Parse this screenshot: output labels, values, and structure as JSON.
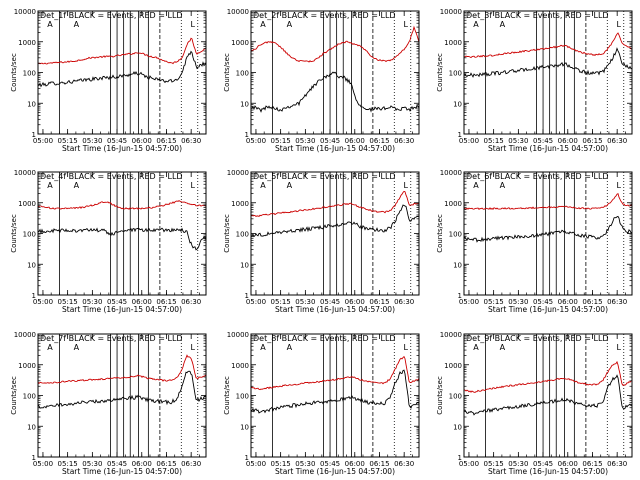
{
  "colors": {
    "events": "#000000",
    "lld": "#cc0000",
    "axis": "#000000",
    "bg": "#ffffff"
  },
  "common": {
    "ylabel": "Counts/sec",
    "xlabel": "Start Time (16-Jun-15 04:57:00)",
    "xticks": [
      "05:00",
      "05:15",
      "05:30",
      "05:45",
      "06:00",
      "06:15",
      "06:30"
    ],
    "yticks": [
      "1",
      "10",
      "100",
      "1000",
      "10000"
    ]
  },
  "chart_data": [
    {
      "type": "line",
      "title": "Det_1f BLACK = Events, RED = LLD",
      "xlabel": "Start Time (16-Jun-15 04:57:00)",
      "ylabel": "Counts/sec",
      "ylim": [
        1,
        10000
      ],
      "xlim": [
        "04:57",
        "06:39"
      ],
      "scale": "log",
      "attenuator_markers": [
        "A",
        "A",
        "L"
      ],
      "series": [
        {
          "name": "LLD",
          "color": "red",
          "values": [
            190,
            195,
            200,
            205,
            210,
            215,
            220,
            230,
            240,
            260,
            280,
            300,
            310,
            320,
            330,
            330,
            340,
            360,
            380,
            400,
            420,
            450,
            400,
            350,
            320,
            300,
            250,
            220,
            200,
            230,
            300,
            800,
            1300,
            400,
            500,
            600
          ]
        },
        {
          "name": "Events",
          "color": "black",
          "values": [
            40,
            40,
            42,
            45,
            45,
            46,
            48,
            50,
            52,
            55,
            58,
            60,
            62,
            65,
            68,
            70,
            72,
            75,
            80,
            85,
            90,
            95,
            80,
            70,
            62,
            58,
            54,
            52,
            52,
            60,
            100,
            300,
            500,
            150,
            180,
            200
          ]
        }
      ]
    },
    {
      "type": "line",
      "title": "Det_2f BLACK = Events, RED = LLD",
      "xlabel": "Start Time (16-Jun-15 04:57:00)",
      "ylabel": "Counts/sec",
      "ylim": [
        1,
        10000
      ],
      "xlim": [
        "04:57",
        "06:39"
      ],
      "scale": "log",
      "attenuator_markers": [
        "A",
        "A",
        "L"
      ],
      "series": [
        {
          "name": "LLD",
          "color": "red",
          "values": [
            500,
            600,
            800,
            950,
            1000,
            900,
            700,
            500,
            350,
            270,
            240,
            230,
            230,
            240,
            300,
            400,
            500,
            650,
            800,
            900,
            1000,
            900,
            800,
            700,
            500,
            350,
            270,
            250,
            240,
            250,
            300,
            400,
            600,
            1000,
            3000,
            1000
          ]
        },
        {
          "name": "Events",
          "color": "black",
          "values": [
            8,
            7,
            6,
            7,
            8,
            7,
            6,
            7,
            8,
            9,
            10,
            15,
            25,
            35,
            50,
            70,
            80,
            100,
            80,
            70,
            60,
            40,
            12,
            8,
            7,
            6,
            7,
            6,
            7,
            8,
            7,
            6,
            7,
            6,
            8,
            7
          ]
        }
      ]
    },
    {
      "type": "line",
      "title": "Det_3f BLACK = Events, RED = LLD",
      "xlabel": "Start Time (16-Jun-15 04:57:00)",
      "ylabel": "Counts/sec",
      "ylim": [
        1,
        10000
      ],
      "xlim": [
        "04:57",
        "06:39"
      ],
      "scale": "log",
      "attenuator_markers": [
        "A",
        "A",
        "L"
      ],
      "series": [
        {
          "name": "LLD",
          "color": "red",
          "values": [
            330,
            320,
            320,
            330,
            340,
            350,
            360,
            380,
            400,
            420,
            440,
            460,
            480,
            500,
            520,
            550,
            570,
            600,
            640,
            680,
            720,
            760,
            650,
            550,
            480,
            430,
            400,
            380,
            380,
            420,
            600,
            1000,
            2000,
            900,
            700,
            600
          ]
        },
        {
          "name": "Events",
          "color": "black",
          "values": [
            85,
            82,
            82,
            85,
            88,
            90,
            92,
            96,
            100,
            105,
            110,
            115,
            120,
            125,
            130,
            138,
            145,
            152,
            160,
            170,
            180,
            190,
            160,
            135,
            118,
            105,
            98,
            92,
            92,
            105,
            160,
            300,
            600,
            200,
            150,
            130
          ]
        }
      ]
    },
    {
      "type": "line",
      "title": "Det_4f BLACK = Events, RED = LLD",
      "xlabel": "Start Time (16-Jun-15 04:57:00)",
      "ylabel": "Counts/sec",
      "ylim": [
        1,
        10000
      ],
      "xlim": [
        "04:57",
        "06:39"
      ],
      "scale": "log",
      "attenuator_markers": [
        "A",
        "A",
        "L"
      ],
      "series": [
        {
          "name": "LLD",
          "color": "red",
          "values": [
            800,
            750,
            700,
            650,
            650,
            650,
            650,
            660,
            680,
            700,
            750,
            800,
            900,
            1000,
            1100,
            1000,
            800,
            700,
            650,
            650,
            650,
            650,
            660,
            680,
            700,
            750,
            800,
            900,
            1000,
            1100,
            1100,
            1000,
            900,
            800,
            800,
            800
          ]
        },
        {
          "name": "Events",
          "color": "black",
          "values": [
            115,
            118,
            120,
            122,
            124,
            125,
            125,
            126,
            126,
            127,
            127,
            128,
            128,
            126,
            120,
            95,
            100,
            120,
            125,
            126,
            127,
            128,
            128,
            129,
            129,
            130,
            130,
            131,
            131,
            130,
            125,
            110,
            40,
            30,
            60,
            80
          ]
        }
      ]
    },
    {
      "type": "line",
      "title": "Det_5f BLACK = Events, RED = LLD",
      "xlabel": "Start Time (16-Jun-15 04:57:00)",
      "ylabel": "Counts/sec",
      "ylim": [
        1,
        10000
      ],
      "xlim": [
        "04:57",
        "06:39"
      ],
      "scale": "log",
      "attenuator_markers": [
        "A",
        "A",
        "L"
      ],
      "series": [
        {
          "name": "LLD",
          "color": "red",
          "values": [
            380,
            370,
            380,
            400,
            420,
            440,
            460,
            480,
            500,
            520,
            550,
            580,
            600,
            630,
            660,
            700,
            740,
            780,
            820,
            860,
            900,
            950,
            800,
            700,
            620,
            560,
            520,
            500,
            500,
            560,
            800,
            1500,
            2500,
            800,
            900,
            1000
          ]
        },
        {
          "name": "Events",
          "color": "black",
          "values": [
            90,
            88,
            90,
            95,
            100,
            105,
            110,
            115,
            120,
            125,
            130,
            135,
            140,
            145,
            150,
            160,
            170,
            180,
            190,
            200,
            210,
            220,
            190,
            165,
            150,
            140,
            132,
            128,
            128,
            150,
            250,
            500,
            1000,
            250,
            300,
            350
          ]
        }
      ]
    },
    {
      "type": "line",
      "title": "Det_6f BLACK = Events, RED = LLD",
      "xlabel": "Start Time (16-Jun-15 04:57:00)",
      "ylabel": "Counts/sec",
      "ylim": [
        1,
        10000
      ],
      "xlim": [
        "04:57",
        "06:39"
      ],
      "scale": "log",
      "attenuator_markers": [
        "A",
        "A",
        "L"
      ],
      "series": [
        {
          "name": "LLD",
          "color": "red",
          "values": [
            650,
            640,
            640,
            640,
            640,
            645,
            650,
            650,
            655,
            660,
            660,
            665,
            670,
            675,
            680,
            690,
            700,
            710,
            720,
            730,
            740,
            760,
            720,
            690,
            670,
            660,
            650,
            650,
            650,
            700,
            900,
            1200,
            2000,
            900,
            800,
            800
          ]
        },
        {
          "name": "Events",
          "color": "black",
          "values": [
            70,
            65,
            62,
            62,
            64,
            66,
            68,
            70,
            72,
            74,
            76,
            78,
            80,
            82,
            85,
            88,
            92,
            96,
            100,
            105,
            110,
            120,
            105,
            95,
            88,
            82,
            78,
            75,
            75,
            85,
            130,
            250,
            400,
            150,
            120,
            110
          ]
        }
      ]
    },
    {
      "type": "line",
      "title": "Det_7f BLACK = Events, RED = LLD",
      "xlabel": "Start Time (16-Jun-15 04:57:00)",
      "ylabel": "Counts/sec",
      "ylim": [
        1,
        10000
      ],
      "xlim": [
        "04:57",
        "06:39"
      ],
      "scale": "log",
      "attenuator_markers": [
        "A",
        "A",
        "L"
      ],
      "series": [
        {
          "name": "LLD",
          "color": "red",
          "values": [
            260,
            250,
            250,
            260,
            270,
            280,
            290,
            300,
            300,
            310,
            320,
            320,
            330,
            340,
            350,
            360,
            370,
            380,
            390,
            400,
            420,
            440,
            400,
            360,
            340,
            320,
            310,
            300,
            310,
            400,
            700,
            2000,
            1500,
            350,
            400,
            450
          ]
        },
        {
          "name": "Events",
          "color": "black",
          "values": [
            45,
            42,
            42,
            45,
            48,
            50,
            52,
            55,
            56,
            58,
            60,
            62,
            64,
            66,
            68,
            70,
            72,
            75,
            78,
            82,
            86,
            90,
            80,
            72,
            68,
            65,
            62,
            60,
            62,
            85,
            200,
            600,
            500,
            70,
            80,
            90
          ]
        }
      ]
    },
    {
      "type": "line",
      "title": "Det_8f BLACK = Events, RED = LLD",
      "xlabel": "Start Time (16-Jun-15 04:57:00)",
      "ylabel": "Counts/sec",
      "ylim": [
        1,
        10000
      ],
      "xlim": [
        "04:57",
        "06:39"
      ],
      "scale": "log",
      "attenuator_markers": [
        "A",
        "A",
        "L"
      ],
      "series": [
        {
          "name": "LLD",
          "color": "red",
          "values": [
            180,
            170,
            160,
            170,
            180,
            190,
            200,
            210,
            220,
            230,
            240,
            250,
            260,
            270,
            280,
            290,
            300,
            320,
            340,
            360,
            380,
            400,
            360,
            320,
            290,
            270,
            255,
            250,
            260,
            350,
            700,
            1500,
            1800,
            250,
            300,
            350
          ]
        },
        {
          "name": "Events",
          "color": "black",
          "values": [
            35,
            32,
            30,
            32,
            35,
            38,
            40,
            42,
            45,
            48,
            50,
            52,
            55,
            58,
            60,
            62,
            65,
            68,
            72,
            76,
            80,
            85,
            75,
            68,
            62,
            58,
            55,
            54,
            58,
            90,
            250,
            500,
            700,
            40,
            50,
            60
          ]
        }
      ]
    },
    {
      "type": "line",
      "title": "Det_9f BLACK = Events, RED = LLD",
      "xlabel": "Start Time (16-Jun-15 04:57:00)",
      "ylabel": "Counts/sec",
      "ylim": [
        1,
        10000
      ],
      "xlim": [
        "04:57",
        "06:39"
      ],
      "scale": "log",
      "attenuator_markers": [
        "A",
        "A",
        "L"
      ],
      "series": [
        {
          "name": "LLD",
          "color": "red",
          "values": [
            150,
            140,
            130,
            140,
            150,
            160,
            170,
            180,
            190,
            200,
            210,
            220,
            230,
            240,
            250,
            265,
            280,
            295,
            310,
            330,
            350,
            370,
            330,
            290,
            260,
            240,
            230,
            225,
            235,
            320,
            600,
            1000,
            1200,
            200,
            250,
            300
          ]
        },
        {
          "name": "Events",
          "color": "black",
          "values": [
            30,
            28,
            26,
            28,
            30,
            32,
            34,
            36,
            38,
            40,
            42,
            44,
            46,
            48,
            50,
            53,
            56,
            59,
            62,
            66,
            70,
            75,
            66,
            58,
            52,
            48,
            46,
            45,
            48,
            70,
            180,
            350,
            450,
            35,
            45,
            55
          ]
        }
      ]
    }
  ]
}
